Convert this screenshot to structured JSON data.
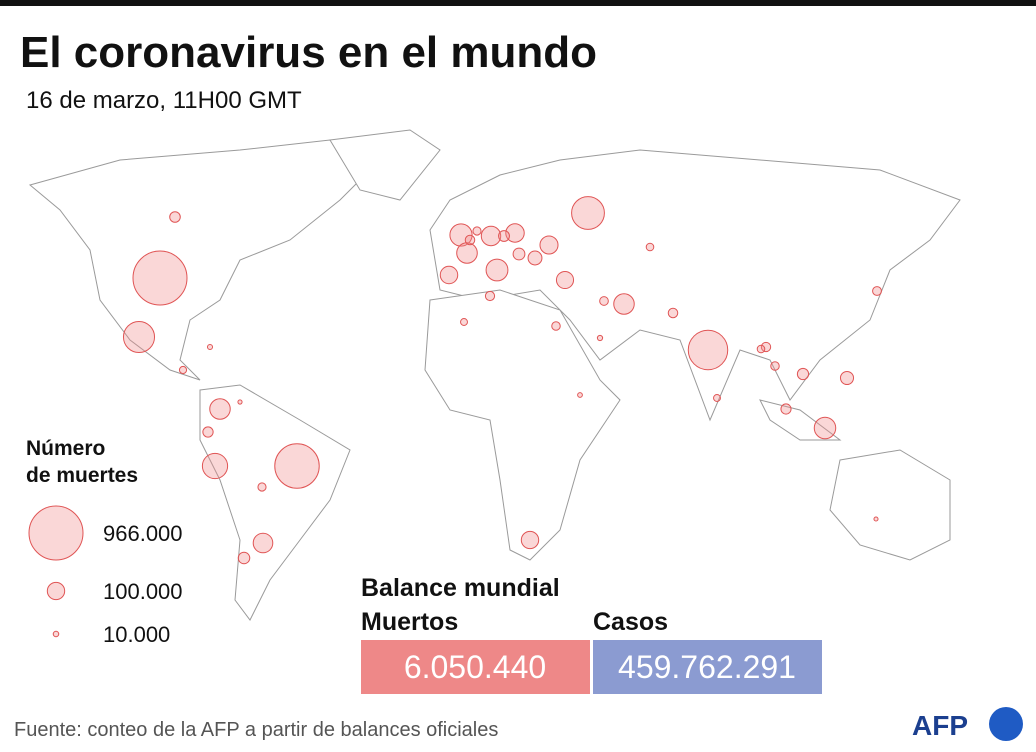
{
  "header": {
    "title": "El coronavirus en el mundo",
    "subtitle": "16 de marzo, 11H00 GMT"
  },
  "map": {
    "bubbles": [
      966000,
      655000,
      516000,
      357000,
      320000,
      211000,
      163000,
      158000,
      153000,
      140000,
      139000,
      139000,
      127000,
      125000,
      113000,
      108000,
      100000,
      101000,
      97000,
      57000,
      37000,
      26000,
      24000,
      25000,
      30000,
      44000,
      35000,
      22000,
      42000,
      34000,
      24000,
      29000,
      16000,
      64000,
      46000,
      39000,
      22000,
      30000,
      28000,
      17000,
      8500,
      5700,
      5500,
      9000,
      19000,
      16000,
      7500,
      19000
    ]
  },
  "legend": {
    "title": [
      "Número",
      "de muertes"
    ],
    "items": [
      {
        "value": 966000,
        "label": "966.000"
      },
      {
        "value": 100000,
        "label": "100.000"
      },
      {
        "value": 10000,
        "label": "10.000"
      }
    ]
  },
  "summary": {
    "title": "Balance mundial",
    "deaths_label": "Muertos",
    "deaths": "6.050.440",
    "cases_label": "Casos",
    "cases": "459.762.291"
  },
  "footer": {
    "source": "Fuente: conteo de la AFP a partir de balances oficiales",
    "logo": "AFP"
  }
}
